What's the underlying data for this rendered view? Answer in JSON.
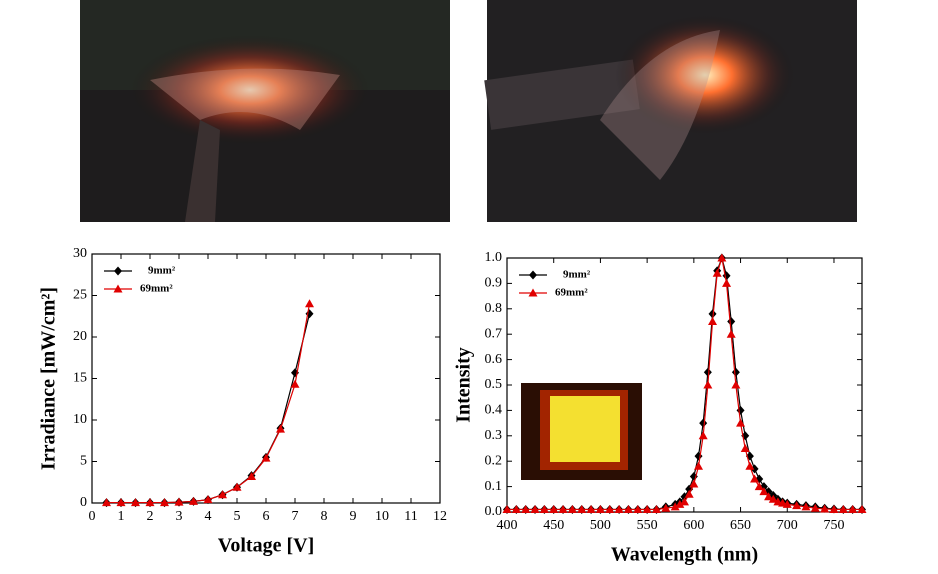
{
  "chart_data": [
    {
      "type": "line",
      "xlabel": "Voltage [V]",
      "ylabel": "Irradiance [mW/cm²]",
      "x": [
        0.5,
        1,
        1.5,
        2,
        2.5,
        3,
        3.5,
        4,
        4.5,
        5,
        5.5,
        6,
        6.5,
        7,
        7.5
      ],
      "series": [
        {
          "name": "9mm²",
          "color": "#000000",
          "marker": "diamond",
          "values": [
            0.05,
            0.05,
            0.05,
            0.05,
            0.05,
            0.1,
            0.2,
            0.4,
            1.0,
            1.9,
            3.3,
            5.5,
            9,
            15.7,
            22.8
          ]
        },
        {
          "name": "69mm²",
          "color": "#e00000",
          "marker": "triangle",
          "values": [
            0.05,
            0.05,
            0.05,
            0.05,
            0.05,
            0.1,
            0.2,
            0.4,
            1.0,
            1.9,
            3.2,
            5.4,
            8.9,
            14.3,
            24
          ]
        }
      ],
      "xlim": [
        0,
        12
      ],
      "xticks": [
        0,
        1,
        2,
        3,
        4,
        5,
        6,
        7,
        8,
        9,
        10,
        11,
        12
      ],
      "ylim": [
        0,
        30
      ],
      "yticks": [
        0,
        5,
        10,
        15,
        20,
        25,
        30
      ],
      "legend": "upper left"
    },
    {
      "type": "line",
      "xlabel": "Wavelength (nm)",
      "ylabel": "Intensity",
      "x": [
        400,
        410,
        420,
        430,
        440,
        450,
        460,
        470,
        480,
        490,
        500,
        510,
        520,
        530,
        540,
        550,
        560,
        570,
        580,
        585,
        590,
        595,
        600,
        605,
        610,
        615,
        620,
        625,
        630,
        635,
        640,
        645,
        650,
        655,
        660,
        665,
        670,
        675,
        680,
        685,
        690,
        695,
        700,
        710,
        720,
        730,
        740,
        750,
        760,
        770,
        780
      ],
      "series": [
        {
          "name": "9mm²",
          "color": "#000000",
          "marker": "diamond",
          "values": [
            0.01,
            0.01,
            0.01,
            0.01,
            0.01,
            0.01,
            0.01,
            0.01,
            0.01,
            0.01,
            0.01,
            0.01,
            0.01,
            0.01,
            0.01,
            0.01,
            0.01,
            0.02,
            0.03,
            0.04,
            0.06,
            0.09,
            0.14,
            0.22,
            0.35,
            0.55,
            0.78,
            0.95,
            1.0,
            0.93,
            0.75,
            0.55,
            0.4,
            0.3,
            0.22,
            0.17,
            0.13,
            0.1,
            0.08,
            0.065,
            0.05,
            0.04,
            0.035,
            0.03,
            0.025,
            0.02,
            0.015,
            0.012,
            0.01,
            0.01,
            0.01
          ]
        },
        {
          "name": "69mm²",
          "color": "#e00000",
          "marker": "triangle",
          "values": [
            0.01,
            0.01,
            0.01,
            0.01,
            0.01,
            0.01,
            0.01,
            0.01,
            0.01,
            0.01,
            0.01,
            0.01,
            0.01,
            0.01,
            0.01,
            0.01,
            0.01,
            0.015,
            0.02,
            0.03,
            0.04,
            0.07,
            0.11,
            0.18,
            0.3,
            0.5,
            0.75,
            0.94,
            1.0,
            0.9,
            0.7,
            0.5,
            0.35,
            0.25,
            0.18,
            0.13,
            0.1,
            0.08,
            0.06,
            0.05,
            0.04,
            0.035,
            0.03,
            0.025,
            0.02,
            0.015,
            0.012,
            0.01,
            0.01,
            0.01,
            0.01
          ]
        }
      ],
      "xlim": [
        400,
        780
      ],
      "xticks": [
        400,
        450,
        500,
        550,
        600,
        650,
        700,
        750
      ],
      "ylim": [
        0,
        1.0
      ],
      "yticks": [
        {
          "value": 0,
          "label": "0.0"
        },
        0.1,
        0.2,
        0.3,
        0.4,
        0.5,
        0.6,
        0.7,
        0.8,
        0.9,
        {
          "value": 1.0,
          "label": "1.0"
        }
      ],
      "legend": "upper left"
    }
  ]
}
